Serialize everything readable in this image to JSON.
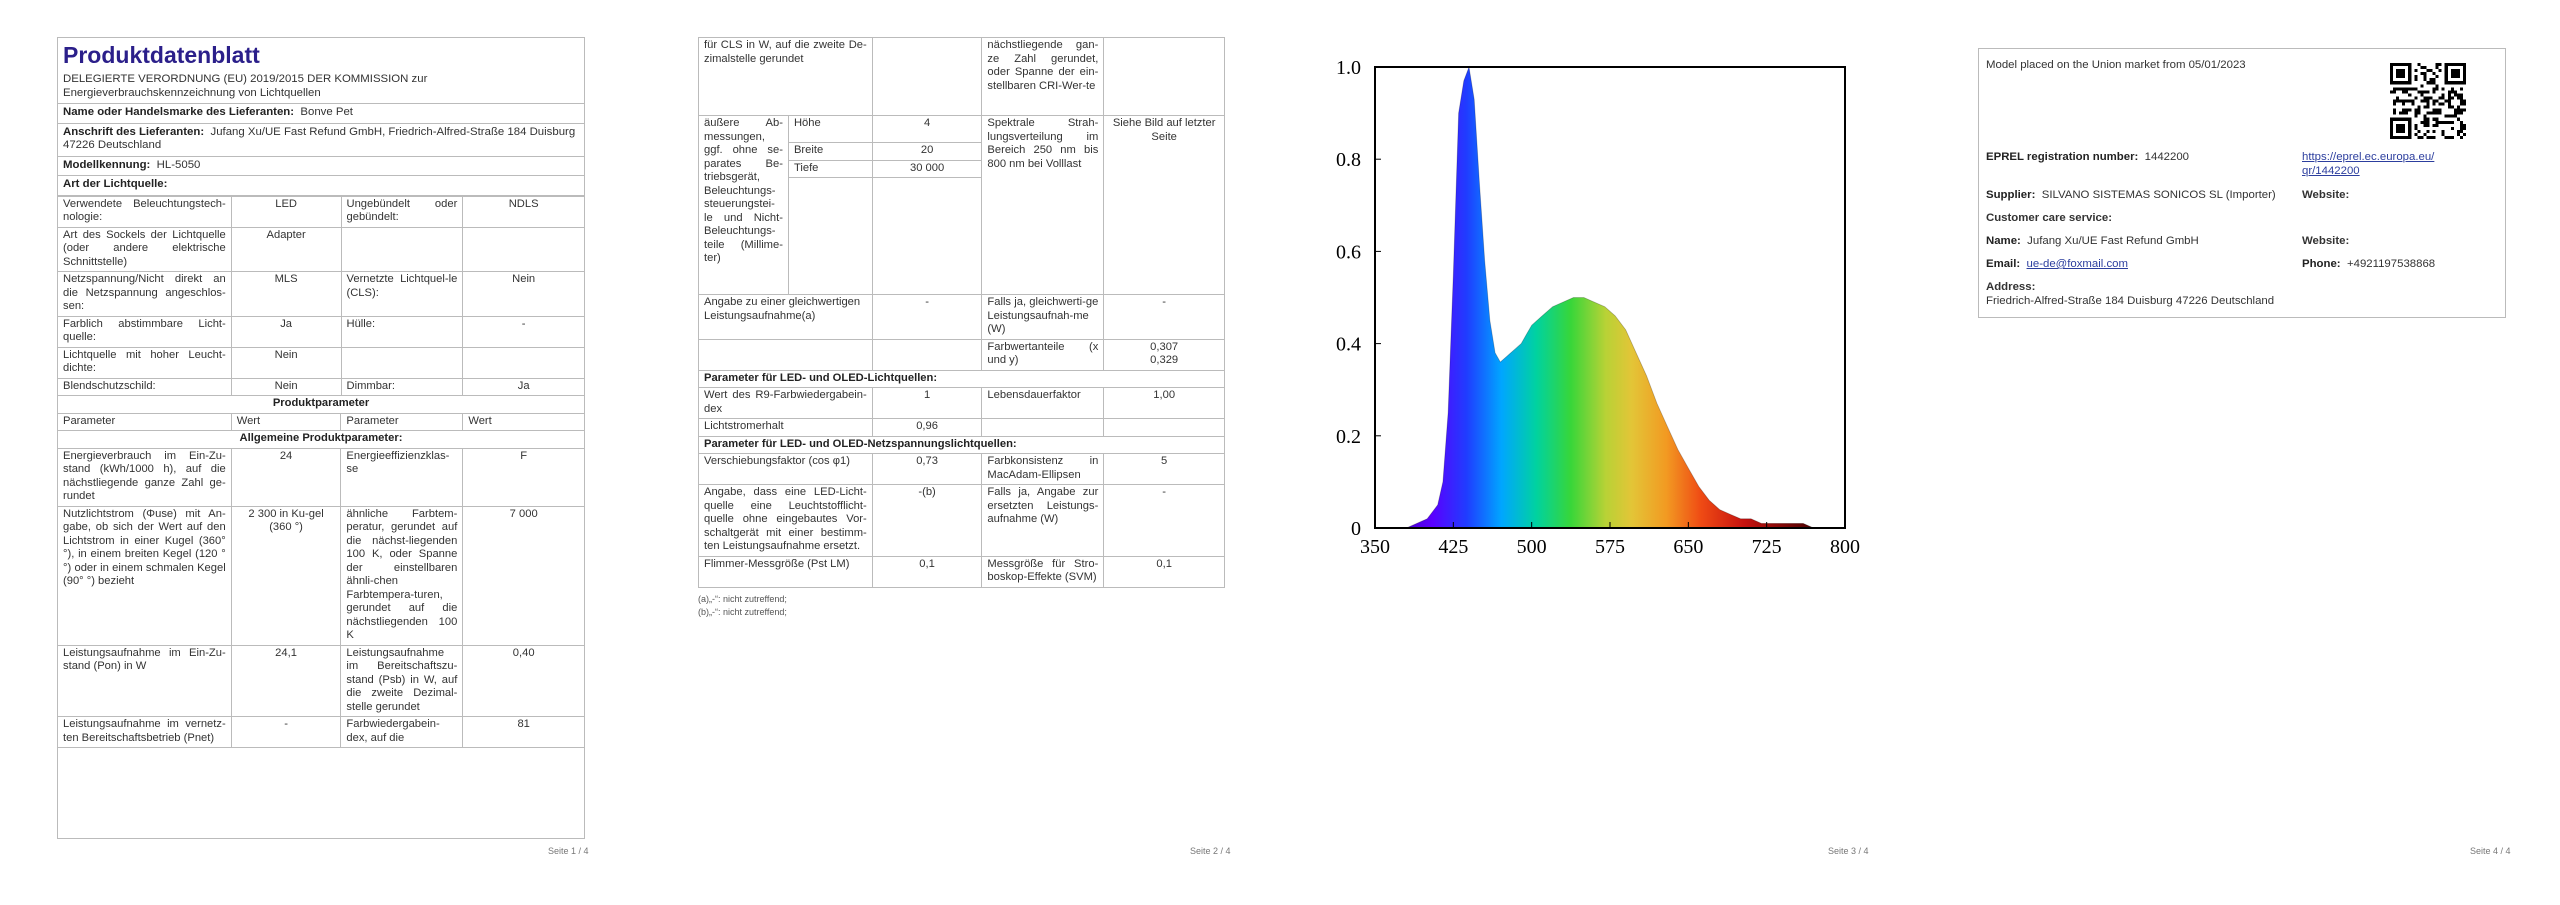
{
  "page1": {
    "title": "Produktdatenblatt",
    "regulation": "DELEGIERTE VERORDNUNG (EU) 2019/2015 DER KOMMISSION zur Energieverbrauchskennzeichnung von Lichtquellen",
    "supplier_name_label": "Name oder Handelsmarke des Lieferanten:",
    "supplier_name": "Bonve Pet",
    "supplier_address_label": "Anschrift des Lieferanten:",
    "supplier_address": "Jufang Xu/UE Fast Refund GmbH, Friedrich-Alfred-Straße 184 Duisburg 47226 Deutschland",
    "model_label": "Modellkennung:",
    "model": "HL-5050",
    "type_label": "Art der Lichtquelle:",
    "type_rows": [
      {
        "l1": "Verwendete Beleuchtungstech-nologie:",
        "v1": "LED",
        "l2": "Ungebündelt oder gebündelt:",
        "v2": "NDLS"
      },
      {
        "l1": "Art des Sockels der Lichtquelle (oder andere elektrische Schnittstelle)",
        "v1": "Adapter",
        "l2": "",
        "v2": ""
      },
      {
        "l1": "Netzspannung/Nicht direkt an die Netzspannung angeschlos-sen:",
        "v1": "MLS",
        "l2": "Vernetzte Lichtquel-le (CLS):",
        "v2": "Nein"
      },
      {
        "l1": "Farblich abstimmbare Licht-quelle:",
        "v1": "Ja",
        "l2": "Hülle:",
        "v2": "-"
      },
      {
        "l1": "Lichtquelle mit hoher Leucht-dichte:",
        "v1": "Nein",
        "l2": "",
        "v2": ""
      },
      {
        "l1": "Blendschutzschild:",
        "v1": "Nein",
        "l2": "Dimmbar:",
        "v2": "Ja"
      }
    ],
    "product_params_header": "Produktparameter",
    "col_headers": [
      "Parameter",
      "Wert",
      "Parameter",
      "Wert"
    ],
    "general_params_header": "Allgemeine Produktparameter:",
    "general_rows": [
      {
        "l1": "Energieverbrauch im Ein-Zu-stand (kWh/1000 h), auf die nächstliegende ganze Zahl ge-rundet",
        "v1": "24",
        "l2": "Energieeffizienzklas-se",
        "v2": "F"
      },
      {
        "l1": "Nutzlichtstrom (Φuse) mit An-gabe, ob sich der Wert auf den Lichtstrom in einer Kugel (360° °), in einem breiten Kegel (120 °°) oder in einem schmalen Kegel (90° °) bezieht",
        "v1": "2 300 in Ku-gel (360 °)",
        "l2": "ähnliche Farbtem-peratur, gerundet auf die nächst-liegenden 100 K, oder Spanne der einstellbaren ähnli-chen Farbtempera-turen, gerundet auf die nächstliegenden 100 K",
        "v2": "7 000"
      },
      {
        "l1": "Leistungsaufnahme im Ein-Zu-stand (Pon) in W",
        "v1": "24,1",
        "l2": "Leistungsaufnahme im Bereitschaftszu-stand (Psb) in W, auf die zweite Dezimal-stelle gerundet",
        "v2": "0,40"
      },
      {
        "l1": "Leistungsaufnahme im vernetz-ten Bereitschaftsbetrieb (Pnet)",
        "v1": "-",
        "l2": "Farbwiedergabein-dex, auf die",
        "v2": "81"
      }
    ],
    "page_number": "Seite 1 / 4"
  },
  "page2": {
    "rows": [
      {
        "l1": "für CLS in W, auf die zweite De-zimalstelle gerundet",
        "v1": "",
        "l2": "nächstliegende gan-ze Zahl gerundet, oder Spanne der ein-stellbaren CRI-Wer-te",
        "v2": ""
      },
      {
        "l1": "Angabe zu einer gleichwertigen Leistungsaufnahme(a)",
        "v1": "-",
        "l2": "Falls ja, gleichwerti-ge Leistungsaufnah-me (W)",
        "v2": "-"
      },
      {
        "l1": "",
        "v1": "",
        "l2": "Farbwertanteile (x und y)",
        "v2": "0,307\n0,329"
      }
    ],
    "dimensions": {
      "label": "äußere Ab-messungen, ggf. ohne se-parates Be-triebsgerät, Beleuchtungs-steuerungstei-le und Nicht-Beleuchtungs-teile (Millime-ter)",
      "items": [
        {
          "k": "Höhe",
          "v": "4"
        },
        {
          "k": "Breite",
          "v": "20"
        },
        {
          "k": "Tiefe",
          "v": "30 000"
        }
      ],
      "l2": "Spektrale Strah-lungsverteilung im Bereich 250 nm bis 800 nm bei Volllast",
      "v2": "Siehe Bild auf letzter Seite"
    },
    "led_header": "Parameter für LED- und OLED-Lichtquellen:",
    "led_rows": [
      {
        "l1": "Wert des R9-Farbwiedergabein-dex",
        "v1": "1",
        "l2": "Lebensdauerfaktor",
        "v2": "1,00"
      },
      {
        "l1": "Lichtstromerhalt",
        "v1": "0,96",
        "l2": "",
        "v2": ""
      }
    ],
    "led_mains_header": "Parameter für LED- und OLED-Netzspannungslichtquellen:",
    "led_mains_rows": [
      {
        "l1": "Verschiebungsfaktor (cos φ1)",
        "v1": "0,73",
        "l2": "Farbkonsistenz in MacAdam-Ellipsen",
        "v2": "5"
      },
      {
        "l1": "Angabe, dass eine LED-Licht-quelle eine Leuchtstofflicht-quelle ohne eingebautes Vor-schaltgerät mit einer bestimm-ten Leistungsaufnahme ersetzt.",
        "v1": "-(b)",
        "l2": "Falls ja, Angabe zur ersetzten Leistungs-aufnahme (W)",
        "v2": "-"
      },
      {
        "l1": "Flimmer-Messgröße (Pst LM)",
        "v1": "0,1",
        "l2": "Messgröße für Stro-boskop-Effekte (SVM)",
        "v2": "0,1"
      }
    ],
    "footnotes": [
      "(a)„-“: nicht zutreffend;",
      "(b)„-“: nicht zutreffend;"
    ],
    "page_number": "Seite 2 / 4"
  },
  "page3": {
    "page_number": "Seite 3 / 4",
    "chart_data": {
      "type": "area",
      "title": "",
      "xlabel": "",
      "ylabel": "",
      "xlim": [
        350,
        800
      ],
      "ylim": [
        0,
        1.0
      ],
      "x_ticks": [
        "350",
        "425",
        "500",
        "575",
        "650",
        "725",
        "800"
      ],
      "y_ticks": [
        "0",
        "0.2",
        "0.4",
        "0.6",
        "0.8",
        "1.0"
      ],
      "grid": false,
      "fill": "spectral rainbow gradient (violet to dark red)",
      "series": [
        {
          "x": [
            355,
            380,
            390,
            400,
            410,
            415,
            420,
            425,
            430,
            435,
            440,
            445,
            450,
            455,
            460,
            465,
            470,
            475,
            480,
            485,
            490,
            495,
            500,
            510,
            520,
            530,
            540,
            550,
            560,
            570,
            580,
            590,
            600,
            610,
            620,
            630,
            640,
            650,
            660,
            670,
            680,
            690,
            700,
            710,
            720,
            730,
            740,
            750,
            760,
            770
          ],
          "values": [
            0,
            0,
            0.01,
            0.02,
            0.05,
            0.1,
            0.25,
            0.55,
            0.9,
            0.97,
            1.0,
            0.93,
            0.75,
            0.58,
            0.45,
            0.38,
            0.36,
            0.37,
            0.38,
            0.39,
            0.4,
            0.42,
            0.44,
            0.46,
            0.48,
            0.49,
            0.5,
            0.5,
            0.49,
            0.48,
            0.46,
            0.43,
            0.38,
            0.33,
            0.27,
            0.22,
            0.17,
            0.13,
            0.09,
            0.06,
            0.04,
            0.03,
            0.02,
            0.02,
            0.01,
            0.01,
            0.01,
            0.01,
            0.01,
            0
          ]
        }
      ]
    }
  },
  "page4": {
    "placed_on_market": "Model placed on the Union market from 05/01/2023",
    "eprel_label": "EPREL registration number:",
    "eprel_number": "1442200",
    "eprel_link": "https://eprel.ec.europa.eu/qr/1442200",
    "supplier_label": "Supplier:",
    "supplier_value": "SILVANO SISTEMAS SONICOS SL  (Importer)",
    "website_label": "Website:",
    "customer_care_label": "Customer care service:",
    "name_label": "Name:",
    "name_value": "Jufang Xu/UE Fast Refund GmbH",
    "website2_label": "Website:",
    "email_label": "Email:",
    "email_value": "ue-de@foxmail.com",
    "phone_label": "Phone:",
    "phone_value": "+4921197538868",
    "address_label": "Address:",
    "address_value": "Friedrich-Alfred-Straße 184 Duisburg 47226 Deutschland",
    "page_number": "Seite 4 / 4"
  }
}
